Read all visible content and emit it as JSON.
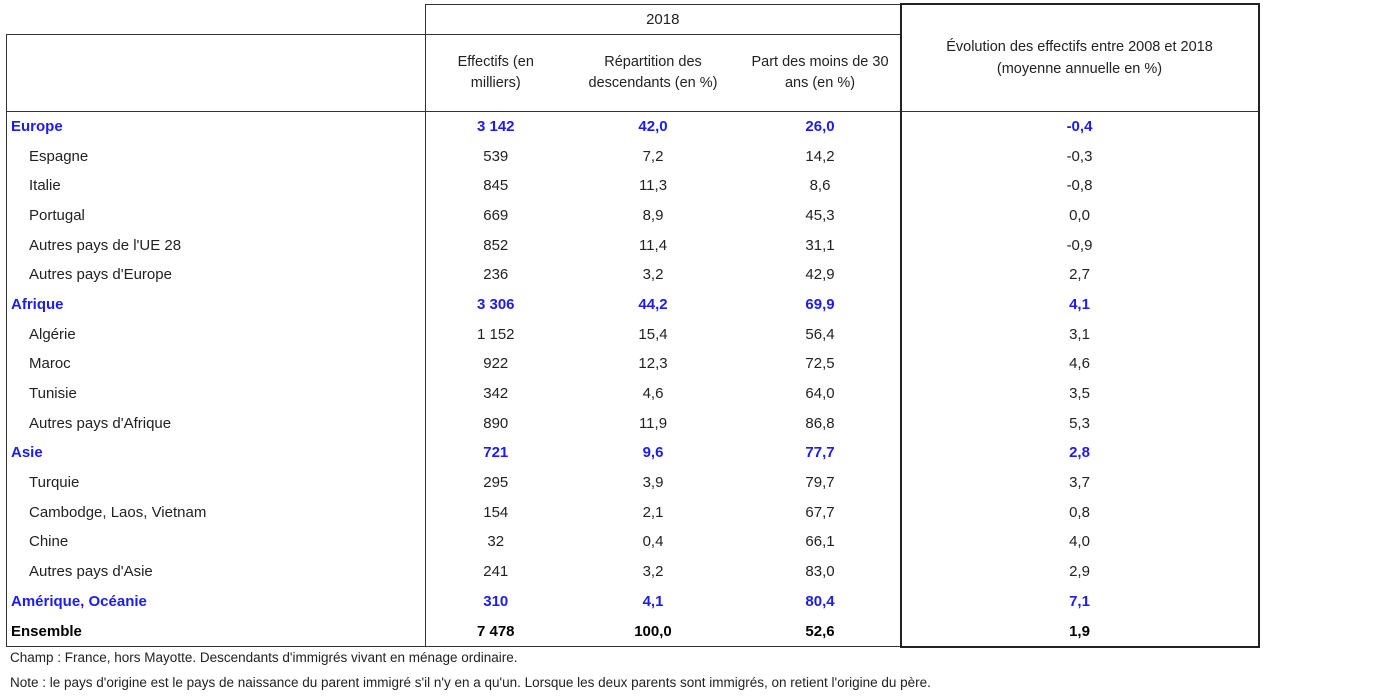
{
  "table": {
    "year": "2018",
    "columns": [
      "Effectifs (en milliers)",
      "Répartition des descendants (en %)",
      "Part des moins de 30 ans (en %)",
      "Évolution des effectifs entre 2008 et 2018 (moyenne annuelle en %)"
    ],
    "rows": [
      {
        "kind": "region",
        "label": "Europe",
        "cells": [
          "3 142",
          "42,0",
          "26,0",
          "-0,4"
        ]
      },
      {
        "kind": "country",
        "label": "Espagne",
        "cells": [
          "539",
          "7,2",
          "14,2",
          "-0,3"
        ]
      },
      {
        "kind": "country",
        "label": "Italie",
        "cells": [
          "845",
          "11,3",
          "8,6",
          "-0,8"
        ]
      },
      {
        "kind": "country",
        "label": "Portugal",
        "cells": [
          "669",
          "8,9",
          "45,3",
          "0,0"
        ]
      },
      {
        "kind": "country",
        "label": "Autres pays de l'UE 28",
        "cells": [
          "852",
          "11,4",
          "31,1",
          "-0,9"
        ]
      },
      {
        "kind": "country",
        "label": "Autres pays d'Europe",
        "cells": [
          "236",
          "3,2",
          "42,9",
          "2,7"
        ]
      },
      {
        "kind": "region",
        "label": "Afrique",
        "cells": [
          "3 306",
          "44,2",
          "69,9",
          "4,1"
        ]
      },
      {
        "kind": "country",
        "label": "Algérie",
        "cells": [
          "1 152",
          "15,4",
          "56,4",
          "3,1"
        ]
      },
      {
        "kind": "country",
        "label": "Maroc",
        "cells": [
          "922",
          "12,3",
          "72,5",
          "4,6"
        ]
      },
      {
        "kind": "country",
        "label": "Tunisie",
        "cells": [
          "342",
          "4,6",
          "64,0",
          "3,5"
        ]
      },
      {
        "kind": "country",
        "label": "Autres pays d'Afrique",
        "cells": [
          "890",
          "11,9",
          "86,8",
          "5,3"
        ]
      },
      {
        "kind": "region",
        "label": "Asie",
        "cells": [
          "721",
          "9,6",
          "77,7",
          "2,8"
        ]
      },
      {
        "kind": "country",
        "label": "Turquie",
        "cells": [
          "295",
          "3,9",
          "79,7",
          "3,7"
        ]
      },
      {
        "kind": "country",
        "label": "Cambodge, Laos, Vietnam",
        "cells": [
          "154",
          "2,1",
          "67,7",
          "0,8"
        ]
      },
      {
        "kind": "country",
        "label": "Chine",
        "cells": [
          "32",
          "0,4",
          "66,1",
          "4,0"
        ]
      },
      {
        "kind": "country",
        "label": "Autres pays d'Asie",
        "cells": [
          "241",
          "3,2",
          "83,0",
          "2,9"
        ]
      },
      {
        "kind": "region",
        "label": "Amérique, Océanie",
        "cells": [
          "310",
          "4,1",
          "80,4",
          "7,1"
        ]
      },
      {
        "kind": "total",
        "label": "Ensemble",
        "cells": [
          "7 478",
          "100,0",
          "52,6",
          "1,9"
        ]
      }
    ]
  },
  "notes": [
    "Champ : France, hors Mayotte. Descendants d'immigrés vivant en ménage ordinaire.",
    "Note : le pays d'origine est le pays de naissance du parent immigré s'il n'y en a qu'un. Lorsque les deux parents sont immigrés, on retient l'origine du père."
  ]
}
